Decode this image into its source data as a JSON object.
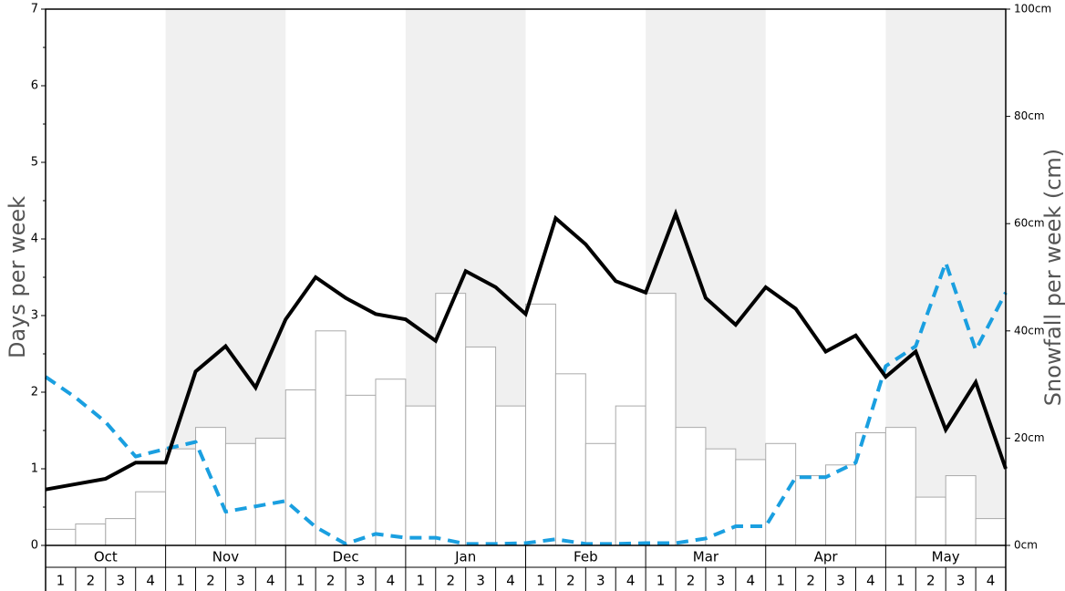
{
  "chart_data": {
    "type": "bar",
    "ylabel": "Days per week",
    "y2label": "Snowfall per week (cm)",
    "ylim": [
      0,
      7
    ],
    "y2lim": [
      0,
      100
    ],
    "y_ticks": [
      "0",
      "1",
      "2",
      "3",
      "4",
      "5",
      "6",
      "7"
    ],
    "y2_ticks": [
      "0cm",
      "20cm",
      "40cm",
      "60cm",
      "80cm",
      "100cm"
    ],
    "months": [
      "Oct",
      "Nov",
      "Dec",
      "Jan",
      "Feb",
      "Mar",
      "Apr",
      "May"
    ],
    "weeks_per_month": [
      "1",
      "2",
      "3",
      "4"
    ],
    "shaded_months": [
      "Nov",
      "Jan",
      "Mar",
      "May"
    ],
    "colors": {
      "shade": "#f0f0f0",
      "bar_fill": "#ffffff",
      "bar_stroke": "#aaaaaa",
      "line_black": "#000000",
      "line_blue": "#1a9fe0",
      "axis_title": "#555555"
    },
    "series": [
      {
        "type": "bar",
        "axis": "right",
        "values": [
          3,
          4,
          5,
          10,
          18,
          22,
          19,
          20,
          29,
          40,
          28,
          31,
          26,
          47,
          37,
          26,
          45,
          32,
          19,
          26,
          47,
          22,
          18,
          16,
          19,
          13,
          15,
          21,
          22,
          9,
          13,
          5
        ]
      },
      {
        "type": "line",
        "axis": "left",
        "style": "solid",
        "values": [
          0.73,
          0.8,
          0.87,
          1.08,
          1.08,
          2.27,
          2.6,
          2.06,
          2.95,
          3.5,
          3.23,
          3.02,
          2.95,
          2.67,
          3.58,
          3.37,
          3.02,
          4.27,
          3.93,
          3.45,
          3.3,
          4.33,
          3.23,
          2.88,
          3.37,
          3.09,
          2.53,
          2.74,
          2.2,
          2.53,
          1.51,
          2.13,
          1.0
        ]
      },
      {
        "type": "line",
        "axis": "left",
        "style": "dashed",
        "values": [
          2.2,
          1.93,
          1.61,
          1.16,
          1.26,
          1.35,
          0.44,
          0.51,
          0.58,
          0.24,
          0.02,
          0.15,
          0.1,
          0.1,
          0.02,
          0.02,
          0.03,
          0.08,
          0.02,
          0.02,
          0.03,
          0.03,
          0.09,
          0.25,
          0.25,
          0.89,
          0.89,
          1.08,
          2.34,
          2.6,
          3.69,
          2.55,
          3.3
        ]
      }
    ]
  }
}
